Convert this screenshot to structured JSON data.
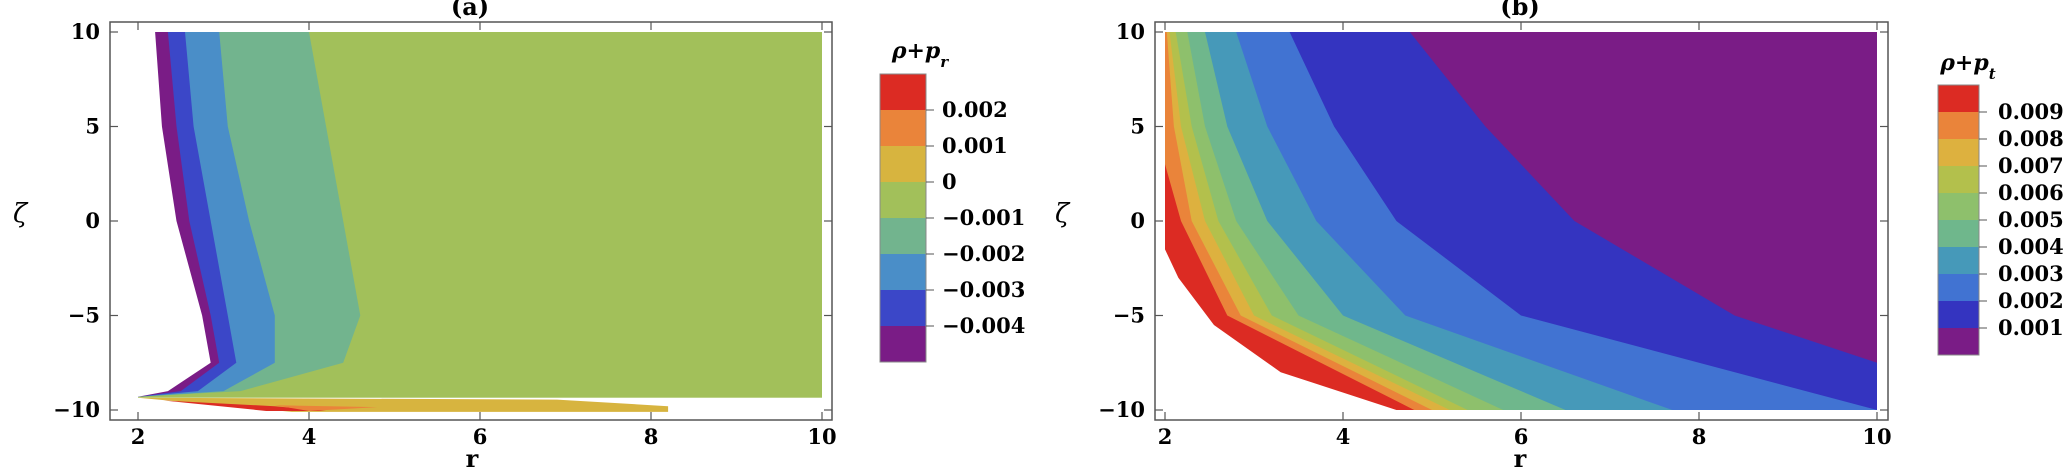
{
  "chart_data": [
    {
      "type": "contour",
      "title": "(a)",
      "xlabel": "r",
      "ylabel": "ζ",
      "xlim": [
        2,
        10
      ],
      "ylim": [
        -10,
        10
      ],
      "x_ticks": [
        "2",
        "4",
        "6",
        "8",
        "10"
      ],
      "y_ticks": [
        "10",
        "5",
        "0",
        "−5",
        "−10"
      ],
      "legend_title": "ρ+p_r",
      "legend_placement": "right",
      "levels": [
        "0.002",
        "0.001",
        "0",
        "−0.001",
        "−0.002",
        "−0.003",
        "−0.004"
      ],
      "colors": [
        "#dc2b23",
        "#ea843a",
        "#d7b43f",
        "#a2c05a",
        "#72b48e",
        "#4a8ec8",
        "#3b47c8",
        "#7a1c86"
      ],
      "regions": [
        {
          "name": "level--0.001",
          "boundary_r_at_zeta": [
            [
              10,
              4.0
            ],
            [
              5,
              4.2
            ],
            [
              0,
              4.4
            ],
            [
              -5,
              4.6
            ],
            [
              -7.5,
              4.4
            ],
            [
              -9,
              3.2
            ],
            [
              -9.3,
              2.0
            ]
          ]
        },
        {
          "name": "level--0.002",
          "boundary_r_at_zeta": [
            [
              10,
              2.95
            ],
            [
              5,
              3.05
            ],
            [
              0,
              3.3
            ],
            [
              -5,
              3.6
            ],
            [
              -7.5,
              3.6
            ],
            [
              -9,
              3.0
            ],
            [
              -9.3,
              2.0
            ]
          ]
        },
        {
          "name": "level--0.003",
          "boundary_r_at_zeta": [
            [
              10,
              2.55
            ],
            [
              5,
              2.65
            ],
            [
              0,
              2.85
            ],
            [
              -5,
              3.05
            ],
            [
              -7.5,
              3.15
            ],
            [
              -9,
              2.7
            ],
            [
              -9.3,
              2.0
            ]
          ]
        },
        {
          "name": "level--0.004",
          "boundary_r_at_zeta": [
            [
              10,
              2.35
            ],
            [
              5,
              2.45
            ],
            [
              0,
              2.6
            ],
            [
              -5,
              2.85
            ],
            [
              -7.5,
              2.95
            ],
            [
              -9,
              2.5
            ],
            [
              -9.3,
              2.0
            ]
          ]
        }
      ]
    },
    {
      "type": "contour",
      "title": "(b)",
      "xlabel": "r",
      "ylabel": "ζ",
      "xlim": [
        2,
        10
      ],
      "ylim": [
        -10,
        10
      ],
      "x_ticks": [
        "2",
        "4",
        "6",
        "8",
        "10"
      ],
      "y_ticks": [
        "10",
        "5",
        "0",
        "−5",
        "−10"
      ],
      "legend_title": "ρ+p_t",
      "legend_placement": "right",
      "levels": [
        "0.009",
        "0.008",
        "0.007",
        "0.006",
        "0.005",
        "0.004",
        "0.003",
        "0.002",
        "0.001"
      ],
      "colors": [
        "#dc2b23",
        "#ea843a",
        "#ddb13f",
        "#b3c04c",
        "#8ec06c",
        "#6fb78c",
        "#4699b9",
        "#4173d2",
        "#3434c0",
        "#7a1c86"
      ],
      "regions": [
        {
          "name": "level-0.001",
          "boundary_r_at_zeta": [
            [
              10,
              4.75
            ],
            [
              5,
              5.6
            ],
            [
              0,
              6.6
            ],
            [
              -5,
              8.4
            ],
            [
              -7.5,
              10.0
            ]
          ]
        },
        {
          "name": "level-0.002",
          "boundary_r_at_zeta": [
            [
              10,
              3.4
            ],
            [
              5,
              3.9
            ],
            [
              0,
              4.6
            ],
            [
              -5,
              6.0
            ],
            [
              -10,
              10.0
            ]
          ]
        },
        {
          "name": "level-0.003",
          "boundary_r_at_zeta": [
            [
              10,
              2.8
            ],
            [
              5,
              3.15
            ],
            [
              0,
              3.7
            ],
            [
              -5,
              4.7
            ],
            [
              -10,
              7.7
            ]
          ]
        },
        {
          "name": "level-0.004",
          "boundary_r_at_zeta": [
            [
              10,
              2.45
            ],
            [
              5,
              2.7
            ],
            [
              0,
              3.15
            ],
            [
              -5,
              4.0
            ],
            [
              -10,
              6.5
            ]
          ]
        },
        {
          "name": "level-0.005",
          "boundary_r_at_zeta": [
            [
              10,
              2.25
            ],
            [
              5,
              2.45
            ],
            [
              0,
              2.8
            ],
            [
              -5,
              3.5
            ],
            [
              -10,
              5.8
            ]
          ]
        },
        {
          "name": "level-0.006",
          "boundary_r_at_zeta": [
            [
              10,
              2.12
            ],
            [
              5,
              2.3
            ],
            [
              0,
              2.6
            ],
            [
              -5,
              3.2
            ],
            [
              -10,
              5.4
            ]
          ]
        },
        {
          "name": "level-0.007",
          "boundary_r_at_zeta": [
            [
              10,
              2.05
            ],
            [
              5,
              2.18
            ],
            [
              0,
              2.45
            ],
            [
              -5,
              3.0
            ],
            [
              -10,
              5.2
            ]
          ]
        },
        {
          "name": "level-0.008",
          "boundary_r_at_zeta": [
            [
              10,
              2.02
            ],
            [
              5,
              2.1
            ],
            [
              0,
              2.3
            ],
            [
              -5,
              2.85
            ],
            [
              -10,
              5.0
            ]
          ]
        },
        {
          "name": "level-0.009",
          "boundary_r_at_zeta": [
            [
              3,
              2.0
            ],
            [
              0,
              2.18
            ],
            [
              -5,
              2.7
            ],
            [
              -10,
              4.8
            ]
          ]
        }
      ]
    }
  ]
}
